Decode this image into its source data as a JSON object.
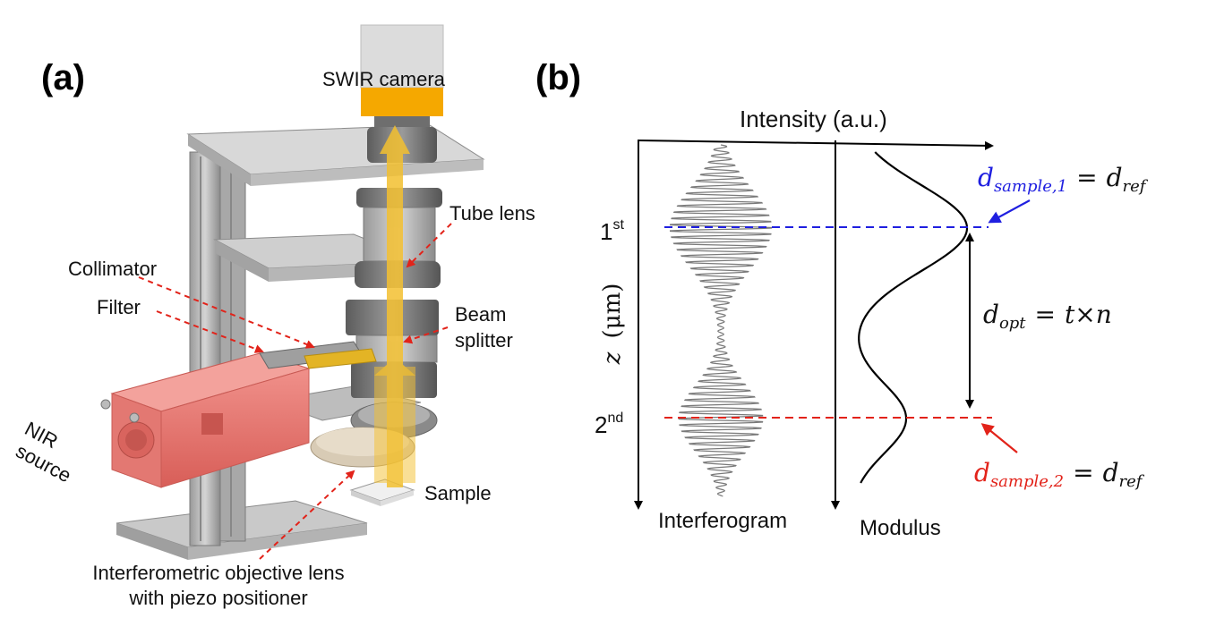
{
  "panel_a": {
    "letter": "(a)",
    "labels": {
      "camera": "SWIR camera",
      "tube_lens": "Tube lens",
      "collimator": "Collimator",
      "filter": "Filter",
      "beam_splitter_1": "Beam",
      "beam_splitter_2": "splitter",
      "nir_source_1": "NIR",
      "nir_source_2": "source",
      "sample": "Sample",
      "objective_1": "Interferometric objective lens",
      "objective_2": "with piezo positioner"
    },
    "colors": {
      "camera_body": "#d9d9d9",
      "camera_band": "#f5a800",
      "beam_arrow": "#f3c030",
      "frame_metal": "#bdbdbd",
      "source_body": "#e8726c",
      "leader_line": "#e2231a"
    }
  },
  "panel_b": {
    "letter": "(b)",
    "x_axis_label": "Intensity (a.u.)",
    "y_axis_label_var": "z",
    "y_axis_label_unit": "(μm)",
    "interferogram_label": "Interferogram",
    "modulus_label": "Modulus",
    "first": {
      "base": "1",
      "sup": "st"
    },
    "second": {
      "base": "2",
      "sup": "nd"
    },
    "eq_sample1": {
      "lhs_base": "d",
      "lhs_sub": "sample,1",
      "rhs_base": "d",
      "rhs_sub": "ref"
    },
    "eq_sample2": {
      "lhs_base": "d",
      "lhs_sub": "sample,2",
      "rhs_base": "d",
      "rhs_sub": "ref"
    },
    "eq_opt": {
      "lhs_base": "d",
      "lhs_sub": "opt",
      "t": "t",
      "times": "×",
      "n": "n"
    },
    "eq_equals": "=",
    "colors": {
      "first_line": "#1f1fe0",
      "second_line": "#e2231a",
      "eq1": "#1f1fe0",
      "eq2": "#e2231a",
      "interferogram": "#7a7a7a",
      "modulus": "#000000"
    }
  }
}
